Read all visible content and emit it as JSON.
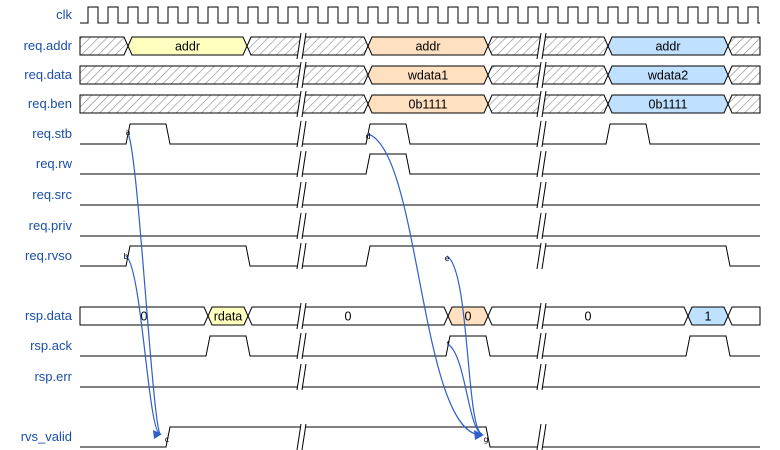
{
  "signals": [
    {
      "name": "clk",
      "type": "clock"
    },
    {
      "name": "req.addr",
      "type": "bus"
    },
    {
      "name": "req.data",
      "type": "bus"
    },
    {
      "name": "req.ben",
      "type": "bus"
    },
    {
      "name": "req.stb",
      "type": "wire"
    },
    {
      "name": "req.rw",
      "type": "wire"
    },
    {
      "name": "req.src",
      "type": "wire"
    },
    {
      "name": "req.priv",
      "type": "wire"
    },
    {
      "name": "req.rvso",
      "type": "wire"
    },
    {
      "name": "rsp.data",
      "type": "bus"
    },
    {
      "name": "rsp.ack",
      "type": "wire"
    },
    {
      "name": "rsp.err",
      "type": "wire"
    },
    {
      "name": "rvs_valid",
      "type": "wire"
    }
  ],
  "colors": {
    "label": "#1a4fa8",
    "yellow": "#ffffc0",
    "orange": "#ffe0c0",
    "blue": "#c0e0ff",
    "hatch": "#888888",
    "edge": "#2f5fc9"
  },
  "buses": {
    "req.addr": [
      {
        "text": "",
        "fill": "hatch"
      },
      {
        "text": "addr",
        "fill": "yellow"
      },
      {
        "text": "",
        "fill": "hatch"
      },
      {
        "text": "addr",
        "fill": "orange"
      },
      {
        "text": "",
        "fill": "hatch"
      },
      {
        "text": "addr",
        "fill": "blue"
      },
      {
        "text": "",
        "fill": "hatch"
      }
    ],
    "req.data": [
      {
        "text": "",
        "fill": "hatch"
      },
      {
        "text": "wdata1",
        "fill": "orange"
      },
      {
        "text": "",
        "fill": "hatch"
      },
      {
        "text": "wdata2",
        "fill": "blue"
      },
      {
        "text": "",
        "fill": "hatch"
      }
    ],
    "req.ben": [
      {
        "text": "",
        "fill": "hatch"
      },
      {
        "text": "0b1111",
        "fill": "orange"
      },
      {
        "text": "",
        "fill": "hatch"
      },
      {
        "text": "0b1111",
        "fill": "blue"
      },
      {
        "text": "",
        "fill": "hatch"
      }
    ],
    "rsp.data": [
      {
        "text": "0",
        "fill": "white"
      },
      {
        "text": "rdata",
        "fill": "yellow"
      },
      {
        "text": "0",
        "fill": "white"
      },
      {
        "text": "0",
        "fill": "orange"
      },
      {
        "text": "0",
        "fill": "white"
      },
      {
        "text": "1",
        "fill": "blue"
      },
      {
        "text": "",
        "fill": "white"
      }
    ]
  },
  "nodes": [
    "a",
    "b",
    "c",
    "d",
    "e",
    "f",
    "g"
  ],
  "edges": [
    {
      "from": "a",
      "to": "c"
    },
    {
      "from": "b",
      "to": "c"
    },
    {
      "from": "d",
      "to": "g"
    },
    {
      "from": "e",
      "to": "g"
    },
    {
      "from": "f",
      "to": "g"
    }
  ]
}
